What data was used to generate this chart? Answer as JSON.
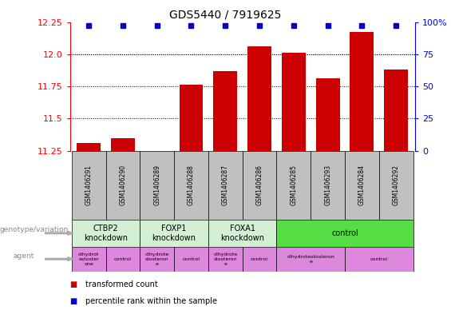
{
  "title": "GDS5440 / 7919625",
  "samples": [
    "GSM1406291",
    "GSM1406290",
    "GSM1406289",
    "GSM1406288",
    "GSM1406287",
    "GSM1406286",
    "GSM1406285",
    "GSM1406293",
    "GSM1406284",
    "GSM1406292"
  ],
  "transformed_count": [
    11.31,
    11.35,
    11.25,
    11.76,
    11.87,
    12.06,
    12.01,
    11.81,
    12.17,
    11.88
  ],
  "percentile_rank": [
    97,
    97,
    97,
    97,
    97,
    97,
    97,
    97,
    97,
    97
  ],
  "ylim_left": [
    11.25,
    12.25
  ],
  "ylim_right": [
    0,
    100
  ],
  "yticks_left": [
    11.25,
    11.5,
    11.75,
    12.0,
    12.25
  ],
  "yticks_right": [
    0,
    25,
    50,
    75,
    100
  ],
  "bar_color": "#cc0000",
  "dot_color": "#0000cc",
  "genotype_groups": [
    {
      "label": "CTBP2\nknockdown",
      "start": 0,
      "end": 2,
      "color": "#d4f0d4"
    },
    {
      "label": "FOXP1\nknockdown",
      "start": 2,
      "end": 4,
      "color": "#d4f0d4"
    },
    {
      "label": "FOXA1\nknockdown",
      "start": 4,
      "end": 6,
      "color": "#d4f0d4"
    },
    {
      "label": "control",
      "start": 6,
      "end": 10,
      "color": "#55dd44"
    }
  ],
  "agent_groups": [
    {
      "label": "dihydrot\nestoster\none",
      "start": 0,
      "end": 1,
      "color": "#dd88dd"
    },
    {
      "label": "control",
      "start": 1,
      "end": 2,
      "color": "#dd88dd"
    },
    {
      "label": "dihydrote\nstosteron\ne",
      "start": 2,
      "end": 3,
      "color": "#dd88dd"
    },
    {
      "label": "control",
      "start": 3,
      "end": 4,
      "color": "#dd88dd"
    },
    {
      "label": "dihydrote\nstosteron\ne",
      "start": 4,
      "end": 5,
      "color": "#dd88dd"
    },
    {
      "label": "control",
      "start": 5,
      "end": 6,
      "color": "#dd88dd"
    },
    {
      "label": "dihydrotestosteron\ne",
      "start": 6,
      "end": 8,
      "color": "#dd88dd"
    },
    {
      "label": "control",
      "start": 8,
      "end": 10,
      "color": "#dd88dd"
    }
  ],
  "legend_red_label": "transformed count",
  "legend_blue_label": "percentile rank within the sample",
  "genotype_label": "genotype/variation",
  "agent_label": "agent",
  "sample_box_color": "#c0c0c0",
  "geno_knockdown_color": "#d4f0d4",
  "geno_control_color": "#55dd44",
  "agent_color": "#dd88dd"
}
